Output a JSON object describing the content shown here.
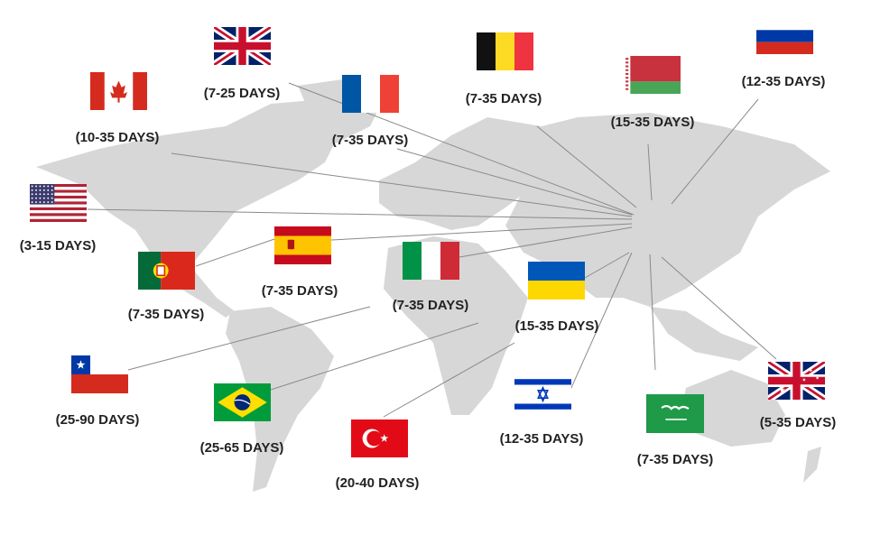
{
  "colors": {
    "map": "#d7d7d7",
    "lines": "#8a8a8a",
    "text": "#222222"
  },
  "destinations": [
    {
      "country": "United Kingdom",
      "flag": "uk",
      "days": "(7-25 DAYS)"
    },
    {
      "country": "Canada",
      "flag": "canada",
      "days": "(10-35 DAYS)"
    },
    {
      "country": "France",
      "flag": "france",
      "days": "(7-35 DAYS)"
    },
    {
      "country": "Belgium",
      "flag": "belgium",
      "days": "(7-35 DAYS)"
    },
    {
      "country": "Belarus",
      "flag": "belarus",
      "days": "(15-35 DAYS)"
    },
    {
      "country": "Russia",
      "flag": "russia",
      "days": "(12-35 DAYS)"
    },
    {
      "country": "United States",
      "flag": "usa",
      "days": "(3-15 DAYS)"
    },
    {
      "country": "Spain",
      "flag": "spain",
      "days": "(7-35 DAYS)"
    },
    {
      "country": "Portugal",
      "flag": "portugal",
      "days": "(7-35 DAYS)"
    },
    {
      "country": "Italy",
      "flag": "italy",
      "days": "(7-35 DAYS)"
    },
    {
      "country": "Ukraine",
      "flag": "ukraine",
      "days": "(15-35 DAYS)"
    },
    {
      "country": "Chile",
      "flag": "chile",
      "days": "(25-90 DAYS)"
    },
    {
      "country": "Brazil",
      "flag": "brazil",
      "days": "(25-65 DAYS)"
    },
    {
      "country": "Turkey",
      "flag": "turkey",
      "days": "(20-40 DAYS)"
    },
    {
      "country": "Israel",
      "flag": "israel",
      "days": "(12-35 DAYS)"
    },
    {
      "country": "Saudi Arabia",
      "flag": "saudi",
      "days": "(7-35 DAYS)"
    },
    {
      "country": "Australia",
      "flag": "australia",
      "days": "(5-35 DAYS)"
    }
  ]
}
